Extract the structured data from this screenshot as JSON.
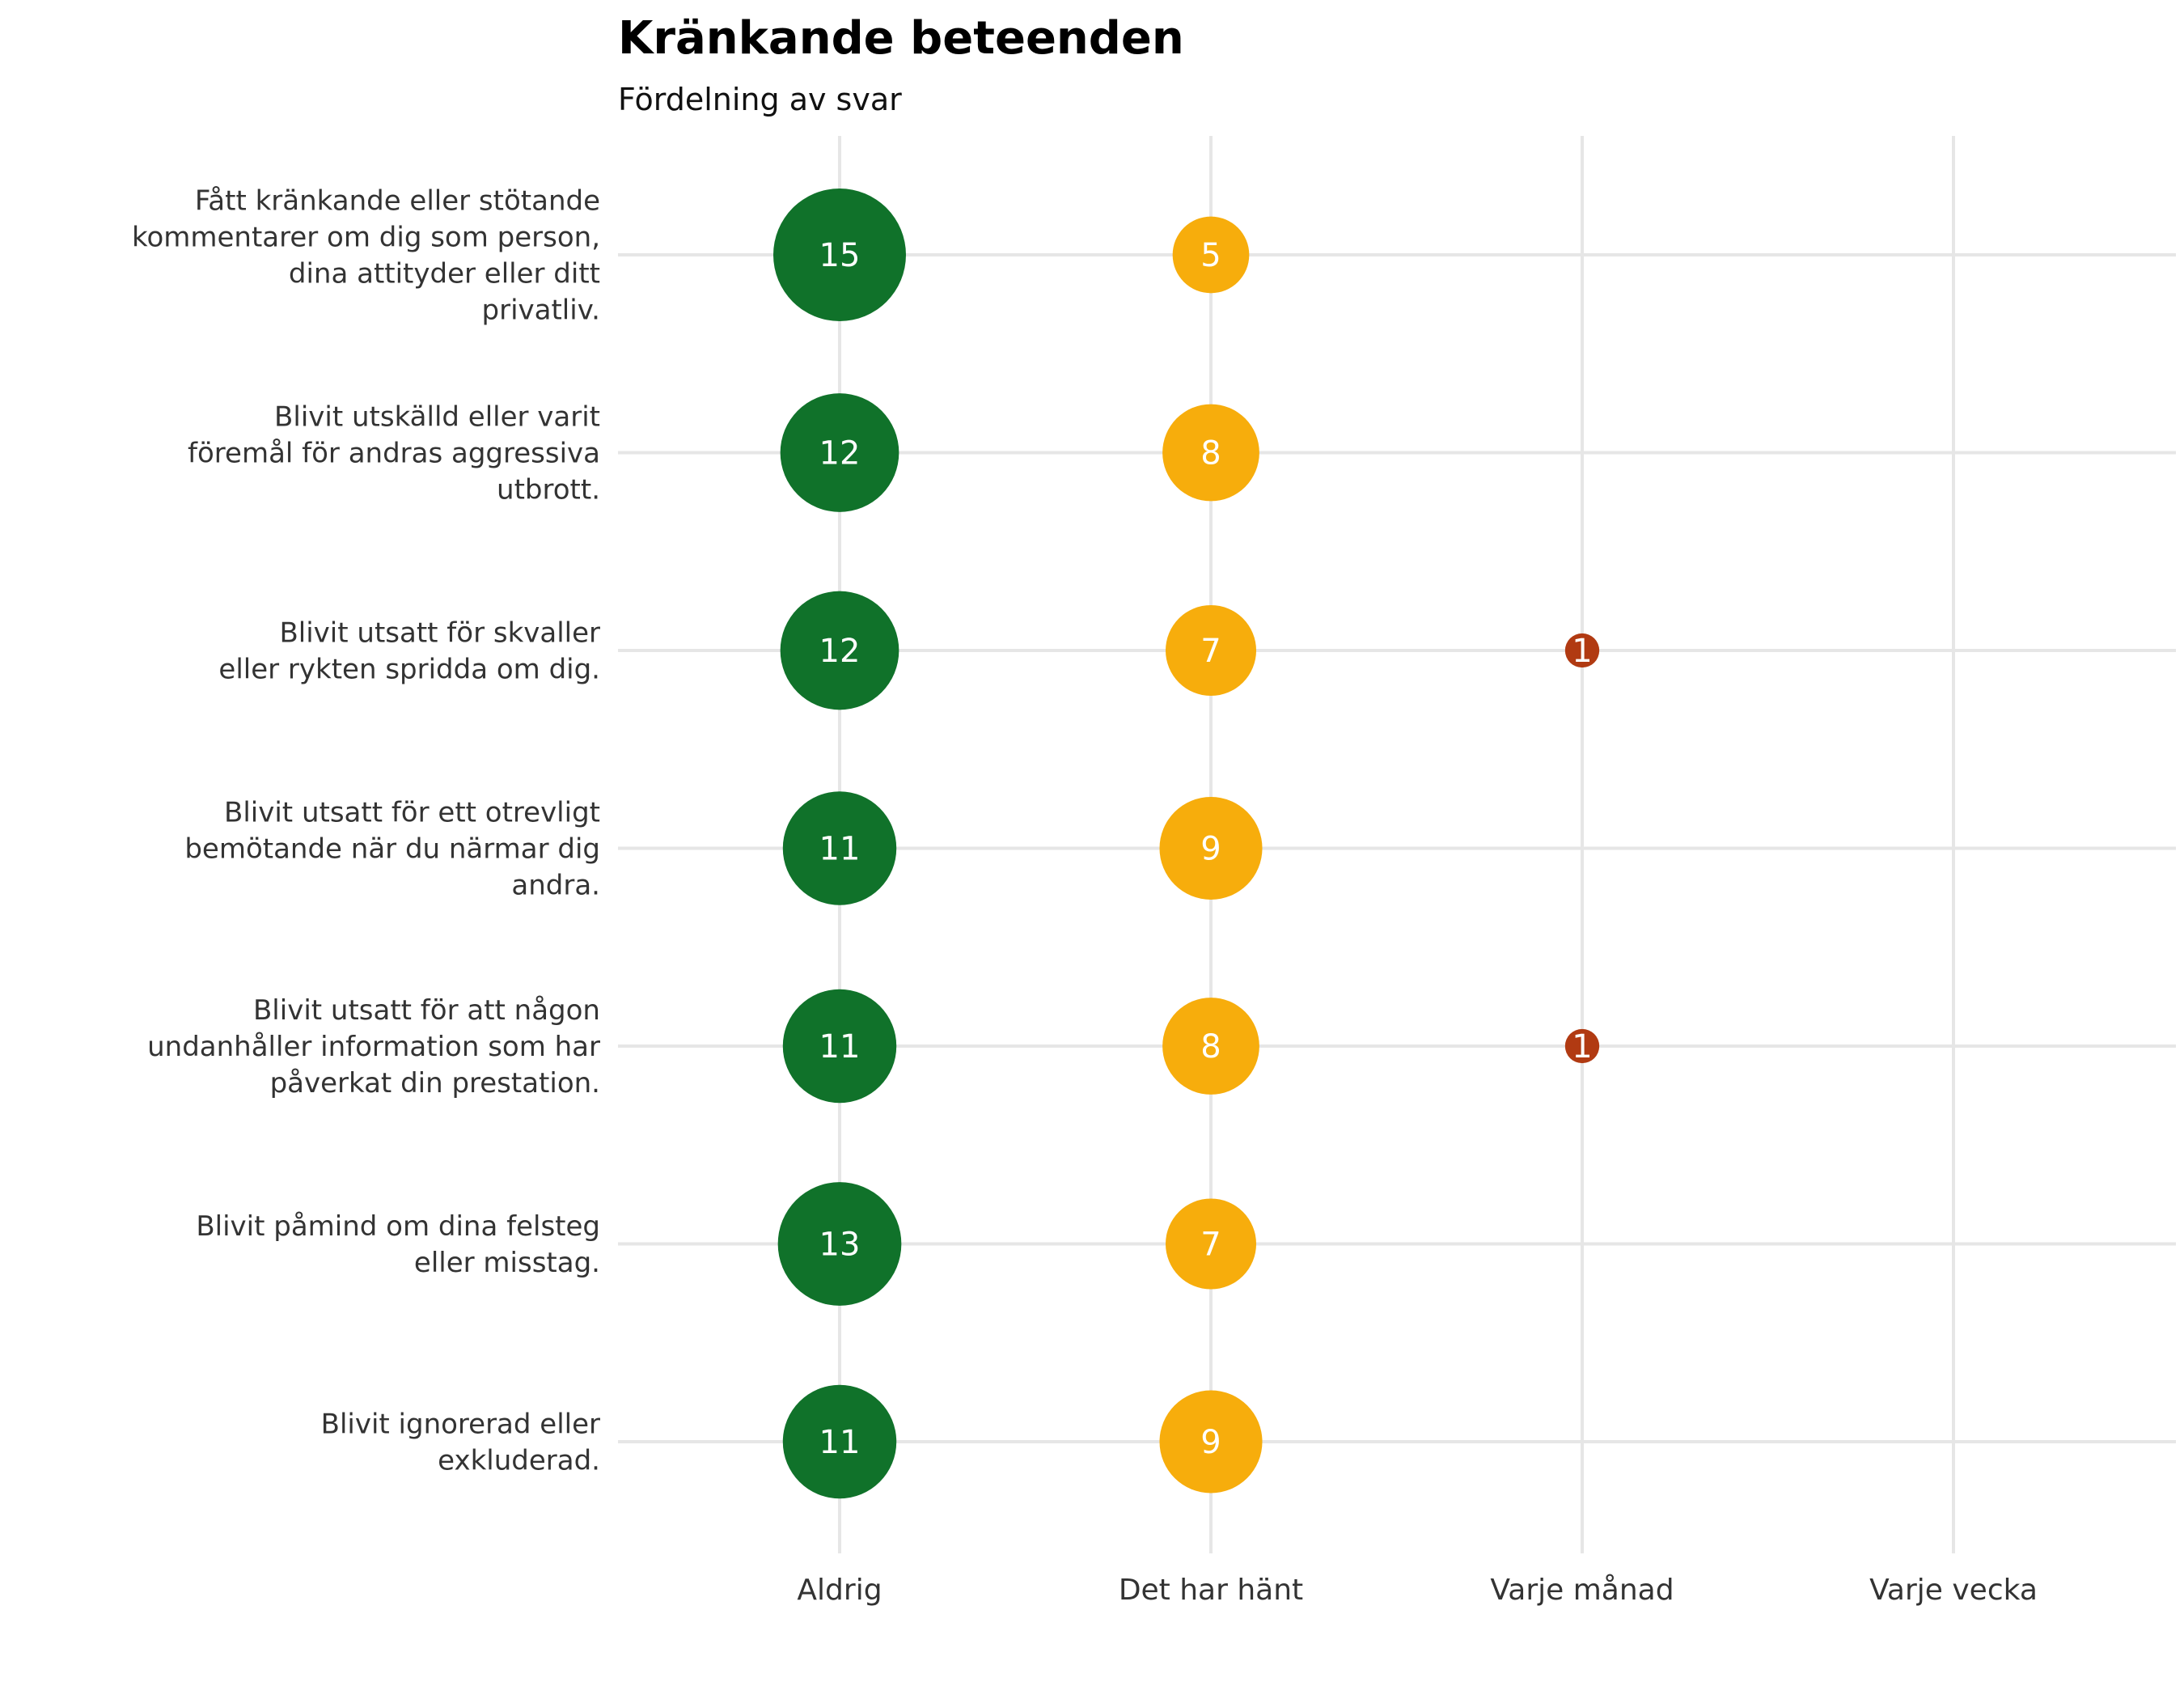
{
  "chart_data": {
    "type": "scatter",
    "title": "Kränkande beteenden",
    "subtitle": "Fördelning av svar",
    "categories": [
      "Aldrig",
      "Det har hänt",
      "Varje månad",
      "Varje vecka"
    ],
    "rows": [
      "Fått kränkande eller stötande kommentarer om dig som person, dina attityder eller ditt privatliv.",
      "Blivit utskälld eller varit föremål för andras aggressiva utbrott.",
      "Blivit utsatt för skvaller eller rykten spridda om dig.",
      "Blivit utsatt för ett otrevligt bemötande när du närmar dig andra.",
      "Blivit utsatt för att någon undanhåller information som har påverkat din prestation.",
      "Blivit påmind om dina felsteg eller misstag.",
      "Blivit ignorerad eller exkluderad."
    ],
    "values": [
      [
        15,
        5,
        0,
        0
      ],
      [
        12,
        8,
        0,
        0
      ],
      [
        12,
        7,
        1,
        0
      ],
      [
        11,
        9,
        0,
        0
      ],
      [
        11,
        8,
        1,
        0
      ],
      [
        13,
        7,
        0,
        0
      ],
      [
        11,
        9,
        0,
        0
      ]
    ],
    "colors": {
      "Aldrig": "#10722a",
      "Det har hänt": "#f7ad0c",
      "Varje månad": "#b13a12",
      "Varje vecka": "#8b1a0e"
    },
    "grid": true,
    "legend": "none"
  }
}
